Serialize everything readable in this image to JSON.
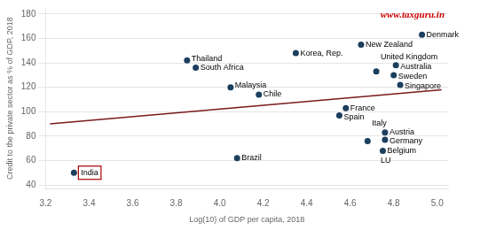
{
  "chart_data": {
    "type": "scatter",
    "xlabel": "Log(10) of GDP per capita, 2018",
    "ylabel": "Credit to the private sector as % of GDP, 2018",
    "points": [
      {
        "x": 3.33,
        "y": 50,
        "label": "India",
        "boxed": true
      },
      {
        "x": 3.85,
        "y": 142,
        "label": "Thailand"
      },
      {
        "x": 3.89,
        "y": 136,
        "label": "South Africa"
      },
      {
        "x": 4.05,
        "y": 120,
        "label": "Malaysia"
      },
      {
        "x": 4.18,
        "y": 114,
        "label": "Chile"
      },
      {
        "x": 4.08,
        "y": 62,
        "label": "Brazil"
      },
      {
        "x": 4.35,
        "y": 148,
        "label": "Korea, Rep."
      },
      {
        "x": 4.58,
        "y": 103,
        "label": "France"
      },
      {
        "x": 4.55,
        "y": 97,
        "label": "Spain"
      },
      {
        "x": 4.65,
        "y": 155,
        "label": "New Zealand"
      },
      {
        "x": 4.72,
        "y": 133,
        "label": "United Kingdom"
      },
      {
        "x": 4.68,
        "y": 76,
        "label": "Italy"
      },
      {
        "x": 4.75,
        "y": 68,
        "label": "Belgium"
      },
      {
        "x": 4.76,
        "y": 83,
        "label": "Austria"
      },
      {
        "x": 4.76,
        "y": 77,
        "label": "Germany"
      },
      {
        "x": 4.81,
        "y": 138,
        "label": "Australia"
      },
      {
        "x": 4.8,
        "y": 130,
        "label": "Sweden"
      },
      {
        "x": 4.83,
        "y": 122,
        "label": "Singapore"
      },
      {
        "x": 4.93,
        "y": 163,
        "label": "Denmark"
      }
    ],
    "color": "#1b3f5e",
    "box_color": "#aa0000",
    "trend_line": {
      "x": [
        3.22,
        5.02
      ],
      "y": [
        90,
        118
      ],
      "color": "#7a1a1a"
    },
    "annotations": [
      {
        "text": "LU",
        "x": 4.72,
        "y": 76
      }
    ],
    "watermark": {
      "text": "www.taxguru.in",
      "color": "#cc0000"
    },
    "xlim": [
      3.2,
      5.05
    ],
    "ylim": [
      37,
      185
    ],
    "xticks": [
      3.2,
      3.4,
      3.6,
      3.8,
      {
        "value": 4,
        "label": "4.0"
      },
      4.2,
      4.4,
      4.6,
      4.8,
      {
        "value": 5,
        "label": "5.0"
      }
    ],
    "yticks": [
      40,
      60,
      80,
      100,
      120,
      140,
      160,
      180
    ],
    "grid": "y"
  }
}
